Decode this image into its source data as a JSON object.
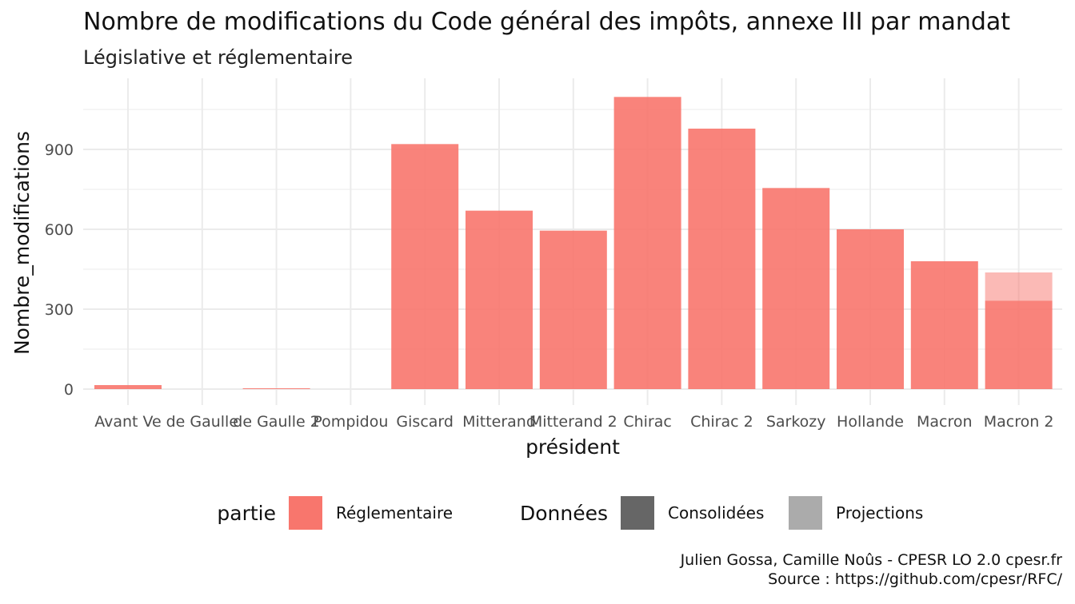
{
  "chart_data": {
    "type": "bar",
    "title": "Nombre de modifications du Code général des impôts, annexe III par mandat",
    "subtitle": "Législative et réglementaire",
    "xlabel": "président",
    "ylabel": "Nombre_modifications",
    "categories": [
      "Avant Ve",
      "de Gaulle",
      "de Gaulle 2",
      "Pompidou",
      "Giscard",
      "Mitterand",
      "Mitterand 2",
      "Chirac",
      "Chirac 2",
      "Sarkozy",
      "Hollande",
      "Macron",
      "Macron 2"
    ],
    "series": [
      {
        "name": "Consolidées",
        "values": [
          15,
          0,
          3,
          0,
          920,
          670,
          595,
          1097,
          978,
          755,
          600,
          480,
          332
        ]
      },
      {
        "name": "Projections",
        "values": [
          0,
          0,
          0,
          0,
          0,
          0,
          0,
          0,
          0,
          0,
          0,
          0,
          106
        ]
      }
    ],
    "ylim": [
      0,
      1140
    ],
    "yticks": [
      0,
      300,
      600,
      900
    ],
    "grid": true,
    "legend": {
      "placement": "bottom",
      "groups": [
        {
          "title": "partie",
          "entries": [
            {
              "label": "Réglementaire",
              "color": "#F8766D"
            }
          ]
        },
        {
          "title": "Données",
          "entries": [
            {
              "label": "Consolidées",
              "color": "#666666"
            },
            {
              "label": "Projections",
              "color": "#ABABAB"
            }
          ]
        }
      ]
    },
    "caption": [
      "Julien Gossa, Camille Noûs - CPESR LO 2.0 cpesr.fr",
      "Source : https://github.com/cpesr/RFC/"
    ]
  },
  "colors": {
    "fill": "#F8766D",
    "grid": "#EBEBEB"
  }
}
